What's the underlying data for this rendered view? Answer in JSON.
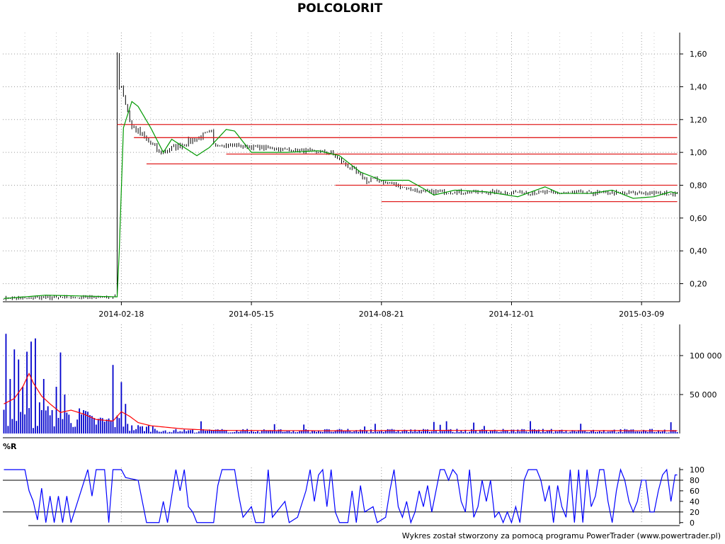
{
  "title": "POLCOLORIT",
  "footer": "Wykres został stworzony za pomocą programu PowerTrader (www.powertrader.pl)",
  "colors": {
    "background": "#ffffff",
    "grid": "#9a9a9a",
    "price_bars": "#000000",
    "price_ma": "#009900",
    "support_resistance": "#e02020",
    "volume_bars": "#0000cc",
    "volume_ma": "#ff0000",
    "williams_r": "#0000ff"
  },
  "chart_data": [
    {
      "type": "bar",
      "panel": "price",
      "x_tick_labels": [
        "2014-02-18",
        "2014-05-15",
        "2014-08-21",
        "2014-12-01",
        "2015-03-09"
      ],
      "x_tick_index": [
        56,
        118,
        180,
        242,
        304
      ],
      "y_tick_labels": [
        "0,20",
        "0,40",
        "0,60",
        "0,80",
        "1,00",
        "1,20",
        "1,40",
        "1,60"
      ],
      "ylim": [
        0.09,
        1.73
      ],
      "grid": true,
      "n": 322,
      "ohlc_phases": [
        {
          "from": 0,
          "to": 54,
          "start": 0.11,
          "end": 0.12,
          "noise": 0.01
        },
        {
          "from": 54,
          "to": 56,
          "start": 1.6,
          "end": 1.4,
          "noise": 0.02
        },
        {
          "from": 56,
          "to": 62,
          "start": 1.4,
          "end": 1.15,
          "noise": 0.04
        },
        {
          "from": 62,
          "to": 75,
          "start": 1.15,
          "end": 1.0,
          "noise": 0.05
        },
        {
          "from": 75,
          "to": 100,
          "start": 1.0,
          "end": 1.12,
          "noise": 0.04
        },
        {
          "from": 100,
          "to": 155,
          "start": 1.05,
          "end": 1.0,
          "noise": 0.02
        },
        {
          "from": 155,
          "to": 175,
          "start": 1.0,
          "end": 0.82,
          "noise": 0.03
        },
        {
          "from": 175,
          "to": 200,
          "start": 0.84,
          "end": 0.76,
          "noise": 0.02
        },
        {
          "from": 200,
          "to": 322,
          "start": 0.76,
          "end": 0.75,
          "noise": 0.02
        }
      ],
      "moving_average": [
        {
          "i": 0,
          "v": 0.11
        },
        {
          "i": 20,
          "v": 0.13
        },
        {
          "i": 54,
          "v": 0.12
        },
        {
          "i": 55,
          "v": 0.4
        },
        {
          "i": 57,
          "v": 1.15
        },
        {
          "i": 61,
          "v": 1.31
        },
        {
          "i": 64,
          "v": 1.28
        },
        {
          "i": 70,
          "v": 1.15
        },
        {
          "i": 76,
          "v": 1.0
        },
        {
          "i": 80,
          "v": 1.08
        },
        {
          "i": 86,
          "v": 1.03
        },
        {
          "i": 92,
          "v": 0.98
        },
        {
          "i": 98,
          "v": 1.03
        },
        {
          "i": 106,
          "v": 1.14
        },
        {
          "i": 110,
          "v": 1.13
        },
        {
          "i": 118,
          "v": 1.0
        },
        {
          "i": 135,
          "v": 1.0
        },
        {
          "i": 150,
          "v": 1.01
        },
        {
          "i": 160,
          "v": 0.98
        },
        {
          "i": 170,
          "v": 0.88
        },
        {
          "i": 180,
          "v": 0.83
        },
        {
          "i": 193,
          "v": 0.83
        },
        {
          "i": 200,
          "v": 0.78
        },
        {
          "i": 205,
          "v": 0.74
        },
        {
          "i": 215,
          "v": 0.77
        },
        {
          "i": 230,
          "v": 0.76
        },
        {
          "i": 245,
          "v": 0.73
        },
        {
          "i": 258,
          "v": 0.79
        },
        {
          "i": 265,
          "v": 0.75
        },
        {
          "i": 280,
          "v": 0.75
        },
        {
          "i": 290,
          "v": 0.77
        },
        {
          "i": 300,
          "v": 0.72
        },
        {
          "i": 310,
          "v": 0.73
        },
        {
          "i": 318,
          "v": 0.76
        },
        {
          "i": 321,
          "v": 0.75
        }
      ],
      "horizontal_lines": [
        {
          "value": 1.17,
          "from": 54,
          "to": 322
        },
        {
          "value": 1.09,
          "from": 62,
          "to": 322
        },
        {
          "value": 0.99,
          "from": 106,
          "to": 322
        },
        {
          "value": 0.93,
          "from": 68,
          "to": 322
        },
        {
          "value": 0.8,
          "from": 158,
          "to": 322
        },
        {
          "value": 0.7,
          "from": 180,
          "to": 322
        }
      ]
    },
    {
      "type": "bar",
      "panel": "volume",
      "y_tick_labels": [
        "50 000",
        "100 000"
      ],
      "ylim": [
        0,
        140000
      ],
      "grid": true,
      "n": 322,
      "spikes": [
        {
          "i": 1,
          "v": 128000
        },
        {
          "i": 3,
          "v": 70000
        },
        {
          "i": 5,
          "v": 108000
        },
        {
          "i": 7,
          "v": 95000
        },
        {
          "i": 9,
          "v": 60000
        },
        {
          "i": 11,
          "v": 105000
        },
        {
          "i": 13,
          "v": 118000
        },
        {
          "i": 15,
          "v": 122000
        },
        {
          "i": 17,
          "v": 40000
        },
        {
          "i": 19,
          "v": 70000
        },
        {
          "i": 21,
          "v": 35000
        },
        {
          "i": 23,
          "v": 30000
        },
        {
          "i": 25,
          "v": 60000
        },
        {
          "i": 27,
          "v": 104000
        },
        {
          "i": 29,
          "v": 50000
        },
        {
          "i": 38,
          "v": 30000
        },
        {
          "i": 40,
          "v": 28000
        },
        {
          "i": 52,
          "v": 88000
        },
        {
          "i": 56,
          "v": 66000
        },
        {
          "i": 58,
          "v": 38000
        }
      ],
      "baseline_phases": [
        {
          "from": 0,
          "to": 40,
          "level": 20000
        },
        {
          "from": 40,
          "to": 60,
          "level": 15000
        },
        {
          "from": 60,
          "to": 75,
          "level": 7000
        },
        {
          "from": 75,
          "to": 322,
          "level": 3500
        }
      ],
      "moving_average": [
        {
          "i": 0,
          "v": 38000
        },
        {
          "i": 5,
          "v": 45000
        },
        {
          "i": 9,
          "v": 60000
        },
        {
          "i": 12,
          "v": 77000
        },
        {
          "i": 14,
          "v": 65000
        },
        {
          "i": 18,
          "v": 48000
        },
        {
          "i": 22,
          "v": 38000
        },
        {
          "i": 27,
          "v": 27000
        },
        {
          "i": 32,
          "v": 30000
        },
        {
          "i": 38,
          "v": 25000
        },
        {
          "i": 44,
          "v": 18000
        },
        {
          "i": 52,
          "v": 16000
        },
        {
          "i": 56,
          "v": 28000
        },
        {
          "i": 60,
          "v": 22000
        },
        {
          "i": 64,
          "v": 14000
        },
        {
          "i": 70,
          "v": 10000
        },
        {
          "i": 85,
          "v": 6000
        },
        {
          "i": 100,
          "v": 4000
        },
        {
          "i": 160,
          "v": 3500
        },
        {
          "i": 200,
          "v": 4000
        },
        {
          "i": 321,
          "v": 3500
        }
      ]
    },
    {
      "type": "line",
      "panel": "williams-r",
      "label": "%R",
      "y_tick_labels": [
        "0",
        "20",
        "40",
        "60",
        "80",
        "100"
      ],
      "y_tick_values": [
        0,
        20,
        40,
        60,
        80,
        100
      ],
      "reference_lines": [
        20,
        80
      ],
      "ylim": [
        -3,
        104
      ],
      "grid": true,
      "points": [
        {
          "i": 0,
          "v": 100
        },
        {
          "i": 10,
          "v": 100
        },
        {
          "i": 12,
          "v": 60
        },
        {
          "i": 14,
          "v": 40
        },
        {
          "i": 16,
          "v": 5
        },
        {
          "i": 18,
          "v": 65
        },
        {
          "i": 20,
          "v": 0
        },
        {
          "i": 22,
          "v": 50
        },
        {
          "i": 24,
          "v": 0
        },
        {
          "i": 26,
          "v": 50
        },
        {
          "i": 28,
          "v": 0
        },
        {
          "i": 30,
          "v": 50
        },
        {
          "i": 32,
          "v": 0
        },
        {
          "i": 40,
          "v": 100
        },
        {
          "i": 42,
          "v": 50
        },
        {
          "i": 44,
          "v": 100
        },
        {
          "i": 48,
          "v": 100
        },
        {
          "i": 50,
          "v": 0
        },
        {
          "i": 52,
          "v": 100
        },
        {
          "i": 56,
          "v": 100
        },
        {
          "i": 58,
          "v": 85
        },
        {
          "i": 64,
          "v": 80
        },
        {
          "i": 66,
          "v": 40
        },
        {
          "i": 68,
          "v": 0
        },
        {
          "i": 74,
          "v": 0
        },
        {
          "i": 76,
          "v": 40
        },
        {
          "i": 78,
          "v": 0
        },
        {
          "i": 82,
          "v": 100
        },
        {
          "i": 84,
          "v": 60
        },
        {
          "i": 86,
          "v": 100
        },
        {
          "i": 88,
          "v": 30
        },
        {
          "i": 90,
          "v": 20
        },
        {
          "i": 92,
          "v": 0
        },
        {
          "i": 100,
          "v": 0
        },
        {
          "i": 102,
          "v": 70
        },
        {
          "i": 104,
          "v": 100
        },
        {
          "i": 110,
          "v": 100
        },
        {
          "i": 112,
          "v": 50
        },
        {
          "i": 114,
          "v": 10
        },
        {
          "i": 118,
          "v": 30
        },
        {
          "i": 120,
          "v": 0
        },
        {
          "i": 124,
          "v": 0
        },
        {
          "i": 126,
          "v": 100
        },
        {
          "i": 128,
          "v": 10
        },
        {
          "i": 130,
          "v": 20
        },
        {
          "i": 134,
          "v": 40
        },
        {
          "i": 136,
          "v": 0
        },
        {
          "i": 140,
          "v": 10
        },
        {
          "i": 144,
          "v": 60
        },
        {
          "i": 146,
          "v": 100
        },
        {
          "i": 148,
          "v": 40
        },
        {
          "i": 150,
          "v": 90
        },
        {
          "i": 152,
          "v": 100
        },
        {
          "i": 154,
          "v": 30
        },
        {
          "i": 156,
          "v": 100
        },
        {
          "i": 158,
          "v": 20
        },
        {
          "i": 160,
          "v": 0
        },
        {
          "i": 164,
          "v": 0
        },
        {
          "i": 166,
          "v": 60
        },
        {
          "i": 168,
          "v": 0
        },
        {
          "i": 170,
          "v": 70
        },
        {
          "i": 172,
          "v": 20
        },
        {
          "i": 176,
          "v": 30
        },
        {
          "i": 178,
          "v": 0
        },
        {
          "i": 182,
          "v": 10
        },
        {
          "i": 184,
          "v": 60
        },
        {
          "i": 186,
          "v": 100
        },
        {
          "i": 188,
          "v": 30
        },
        {
          "i": 190,
          "v": 10
        },
        {
          "i": 192,
          "v": 40
        },
        {
          "i": 194,
          "v": 0
        },
        {
          "i": 196,
          "v": 20
        },
        {
          "i": 198,
          "v": 60
        },
        {
          "i": 200,
          "v": 30
        },
        {
          "i": 202,
          "v": 70
        },
        {
          "i": 204,
          "v": 20
        },
        {
          "i": 206,
          "v": 60
        },
        {
          "i": 208,
          "v": 100
        },
        {
          "i": 210,
          "v": 100
        },
        {
          "i": 212,
          "v": 80
        },
        {
          "i": 214,
          "v": 100
        },
        {
          "i": 216,
          "v": 90
        },
        {
          "i": 218,
          "v": 40
        },
        {
          "i": 220,
          "v": 20
        },
        {
          "i": 222,
          "v": 100
        },
        {
          "i": 224,
          "v": 10
        },
        {
          "i": 226,
          "v": 30
        },
        {
          "i": 228,
          "v": 80
        },
        {
          "i": 230,
          "v": 40
        },
        {
          "i": 232,
          "v": 80
        },
        {
          "i": 234,
          "v": 10
        },
        {
          "i": 236,
          "v": 20
        },
        {
          "i": 238,
          "v": 0
        },
        {
          "i": 240,
          "v": 20
        },
        {
          "i": 242,
          "v": 0
        },
        {
          "i": 244,
          "v": 30
        },
        {
          "i": 246,
          "v": 0
        },
        {
          "i": 248,
          "v": 80
        },
        {
          "i": 250,
          "v": 100
        },
        {
          "i": 254,
          "v": 100
        },
        {
          "i": 256,
          "v": 80
        },
        {
          "i": 258,
          "v": 40
        },
        {
          "i": 260,
          "v": 70
        },
        {
          "i": 262,
          "v": 0
        },
        {
          "i": 264,
          "v": 70
        },
        {
          "i": 266,
          "v": 30
        },
        {
          "i": 268,
          "v": 10
        },
        {
          "i": 270,
          "v": 100
        },
        {
          "i": 272,
          "v": 0
        },
        {
          "i": 274,
          "v": 100
        },
        {
          "i": 276,
          "v": 0
        },
        {
          "i": 278,
          "v": 100
        },
        {
          "i": 280,
          "v": 30
        },
        {
          "i": 282,
          "v": 50
        },
        {
          "i": 284,
          "v": 100
        },
        {
          "i": 286,
          "v": 100
        },
        {
          "i": 288,
          "v": 40
        },
        {
          "i": 290,
          "v": 0
        },
        {
          "i": 292,
          "v": 60
        },
        {
          "i": 294,
          "v": 100
        },
        {
          "i": 296,
          "v": 80
        },
        {
          "i": 298,
          "v": 40
        },
        {
          "i": 300,
          "v": 20
        },
        {
          "i": 302,
          "v": 40
        },
        {
          "i": 304,
          "v": 80
        },
        {
          "i": 306,
          "v": 80
        },
        {
          "i": 308,
          "v": 20
        },
        {
          "i": 310,
          "v": 20
        },
        {
          "i": 312,
          "v": 60
        },
        {
          "i": 314,
          "v": 90
        },
        {
          "i": 316,
          "v": 100
        },
        {
          "i": 318,
          "v": 40
        },
        {
          "i": 320,
          "v": 90
        },
        {
          "i": 321,
          "v": 90
        }
      ]
    }
  ]
}
